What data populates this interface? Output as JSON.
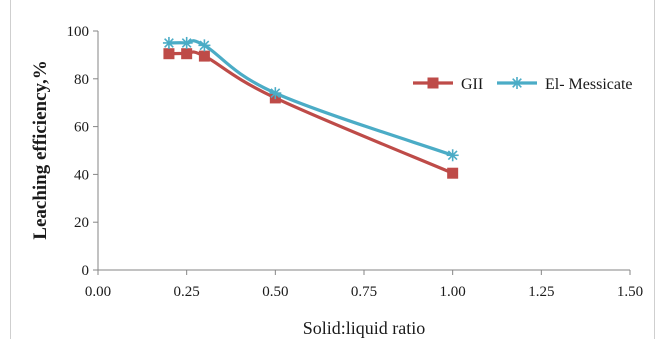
{
  "chart_data": {
    "type": "line",
    "xlabel": "Solid:liquid ratio",
    "ylabel": "Leaching efficiency,%",
    "xlim": [
      0,
      1.5
    ],
    "ylim": [
      0,
      100
    ],
    "x_ticks": [
      "0.00",
      "0.25",
      "0.50",
      "0.75",
      "1.00",
      "1.25",
      "1.50"
    ],
    "y_ticks": [
      "0",
      "20",
      "40",
      "60",
      "80",
      "100"
    ],
    "grid": false,
    "legend_position": "right",
    "series": [
      {
        "name": "GII",
        "color": "#be4b48",
        "marker": "square",
        "x": [
          0.2,
          0.25,
          0.3,
          0.5,
          1.0
        ],
        "y": [
          90.5,
          90.5,
          89.5,
          72,
          40.5
        ]
      },
      {
        "name": "El- Messicate",
        "color": "#4bacc6",
        "marker": "asterisk",
        "x": [
          0.2,
          0.25,
          0.3,
          0.5,
          1.0
        ],
        "y": [
          95,
          95,
          94,
          74,
          48
        ]
      }
    ]
  }
}
